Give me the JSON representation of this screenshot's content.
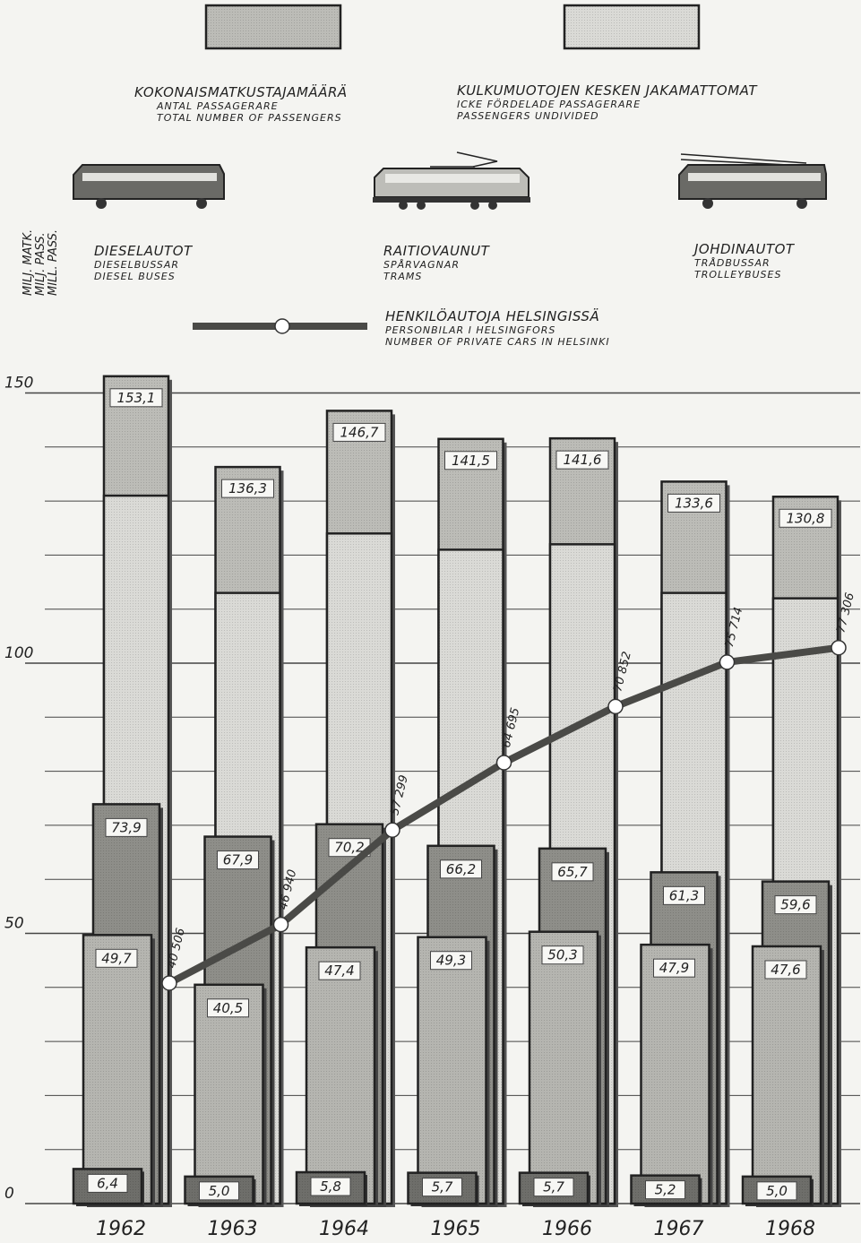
{
  "chart_data": {
    "type": "bar",
    "categories": [
      "1962",
      "1963",
      "1964",
      "1965",
      "1966",
      "1967",
      "1968"
    ],
    "ylim": [
      0,
      150
    ],
    "yticks": [
      0,
      50,
      100,
      150
    ],
    "ylabel": [
      "MILJ. MATK.",
      "MILJ. PASS.",
      "MILL. PASS."
    ],
    "grid": true,
    "series": [
      {
        "key": "total",
        "legend_lines": [
          "KOKONAISMATKUSTAJAMÄÄRÄ",
          "ANTAL PASSAGERARE",
          "TOTAL NUMBER OF PASSENGERS"
        ],
        "values": [
          153.1,
          136.3,
          146.7,
          141.5,
          141.6,
          133.6,
          130.8
        ],
        "labels": [
          "153,1",
          "136,3",
          "146,7",
          "141,5",
          "141,6",
          "133,6",
          "130,8"
        ]
      },
      {
        "key": "undivided",
        "legend_lines": [
          "KULKUMUOTOJEN KESKEN JAKAMATTOMAT",
          "ICKE FÖRDELADE PASSAGERARE",
          "PASSENGERS UNDIVIDED"
        ],
        "values": [
          131,
          113,
          124,
          121,
          122,
          113,
          112
        ]
      },
      {
        "key": "trams",
        "legend_lines": [
          "RAITIOVAUNUT",
          "SPÅRVAGNAR",
          "TRAMS"
        ],
        "values": [
          73.9,
          67.9,
          70.2,
          66.2,
          65.7,
          61.3,
          59.6
        ],
        "labels": [
          "73,9",
          "67,9",
          "70,2",
          "66,2",
          "65,7",
          "61,3",
          "59,6"
        ]
      },
      {
        "key": "diesel",
        "legend_lines": [
          "DIESELAUTOT",
          "DIESELBUSSAR",
          "DIESEL BUSES"
        ],
        "values": [
          49.7,
          40.5,
          47.4,
          49.3,
          50.3,
          47.9,
          47.6
        ],
        "labels": [
          "49,7",
          "40,5",
          "47,4",
          "49,3",
          "50,3",
          "47,9",
          "47,6"
        ]
      },
      {
        "key": "trolley",
        "legend_lines": [
          "JOHDINAUTOT",
          "TRÅDBUSSAR",
          "TROLLEYBUSES"
        ],
        "values": [
          6.4,
          5.0,
          5.8,
          5.7,
          5.7,
          5.2,
          5.0
        ],
        "labels": [
          "6,4",
          "5,0",
          "5,8",
          "5,7",
          "5,7",
          "5,2",
          "5,0"
        ]
      },
      {
        "key": "cars",
        "type": "line",
        "legend_lines": [
          "HENKILÖAUTOJA HELSINGISSÄ",
          "PERSONBILAR I HELSINGFORS",
          "NUMBER OF PRIVATE CARS IN HELSINKI"
        ],
        "values": [
          40506,
          46940,
          57299,
          64695,
          70852,
          75714,
          77306
        ],
        "labels": [
          "40 506",
          "46 940",
          "57 299",
          "64 695",
          "70 852",
          "75 714",
          "77 306"
        ]
      }
    ],
    "colors": {
      "total": "#bcbcb7",
      "undivided": "#dadad6",
      "trams": "#8e8e89",
      "diesel": "#b5b5b0",
      "trolley": "#6e6e6a",
      "cars_line": "#4a4a47",
      "grid": "#444444"
    },
    "icons": [
      "diesel-bus-icon",
      "tram-icon",
      "trolleybus-icon"
    ]
  }
}
